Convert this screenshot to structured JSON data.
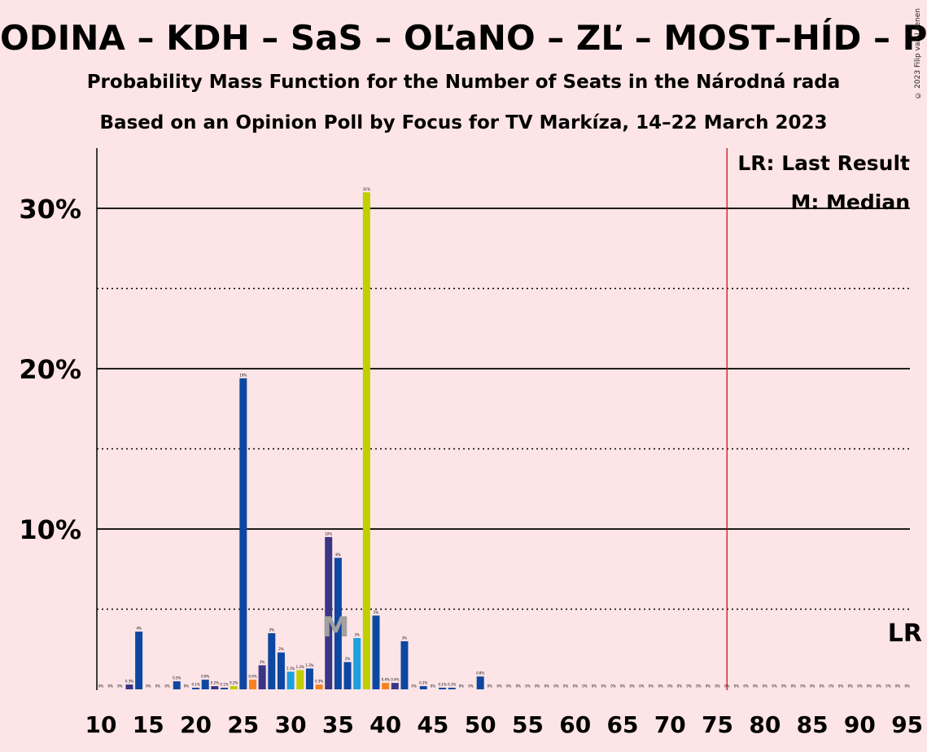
{
  "header": {
    "title": "ODINA – KDH – SaS – OĽaNO – ZĽ – MOST–HÍD – PS–",
    "subtitle1": "Probability Mass Function for the Number of Seats in the Národná rada",
    "subtitle2": "Based on an Opinion Poll by Focus for TV Markíza, 14–22 March 2023",
    "copyright": "© 2023 Filip van Laenen"
  },
  "legend": {
    "last_result": "LR: Last Result",
    "median": "M: Median",
    "lr_marker": "LR",
    "median_marker": "M"
  },
  "colors": {
    "background": "#fde4e6",
    "navy": "#0d47a1",
    "purple": "#3b3585",
    "teal_blue": "#1ba0e0",
    "yellow_green": "#bfcf00",
    "orange": "#f58220",
    "last_result_line": "#cc0000"
  },
  "chart_data": {
    "type": "bar",
    "title": "Probability Mass Function for the Number of Seats in the Národná rada",
    "xlabel": "",
    "ylabel": "",
    "xlim": [
      10,
      95
    ],
    "ylim": [
      0,
      0.33
    ],
    "y_ticks": [
      {
        "value": 0.1,
        "label": "10%"
      },
      {
        "value": 0.2,
        "label": "20%"
      },
      {
        "value": 0.3,
        "label": "30%"
      }
    ],
    "x_ticks": [
      10,
      15,
      20,
      25,
      30,
      35,
      40,
      45,
      50,
      55,
      60,
      65,
      70,
      75,
      80,
      85,
      90,
      95
    ],
    "grid": "solid at 10%, 20%, 30%; dotted at 5%, 15%, 25%",
    "last_result_seats": 76,
    "median_seats": 35,
    "bars": [
      {
        "x": 10,
        "value": 0.0,
        "label": "0%",
        "color": "navy"
      },
      {
        "x": 11,
        "value": 0.0,
        "label": "0%",
        "color": "navy"
      },
      {
        "x": 12,
        "value": 0.0,
        "label": "0%",
        "color": "navy"
      },
      {
        "x": 13,
        "value": 0.003,
        "label": "0.3%",
        "color": "purple"
      },
      {
        "x": 14,
        "value": 0.036,
        "label": "4%",
        "color": "navy"
      },
      {
        "x": 15,
        "value": 0.0,
        "label": "0%",
        "color": "navy"
      },
      {
        "x": 16,
        "value": 0.0,
        "label": "0%",
        "color": "navy"
      },
      {
        "x": 17,
        "value": 0.0,
        "label": "0%",
        "color": "navy"
      },
      {
        "x": 18,
        "value": 0.005,
        "label": "0.5%",
        "color": "navy"
      },
      {
        "x": 19,
        "value": 0.0,
        "label": "0%",
        "color": "navy"
      },
      {
        "x": 20,
        "value": 0.001,
        "label": "0.1%",
        "color": "navy"
      },
      {
        "x": 21,
        "value": 0.006,
        "label": "0.6%",
        "color": "navy"
      },
      {
        "x": 22,
        "value": 0.002,
        "label": "0.2%",
        "color": "purple"
      },
      {
        "x": 23,
        "value": 0.001,
        "label": "0.1%",
        "color": "navy"
      },
      {
        "x": 24,
        "value": 0.002,
        "label": "0.2%",
        "color": "yellow_green"
      },
      {
        "x": 25,
        "value": 0.194,
        "label": "19%",
        "color": "navy"
      },
      {
        "x": 26,
        "value": 0.006,
        "label": "0.6%",
        "color": "orange"
      },
      {
        "x": 27,
        "value": 0.015,
        "label": "2%",
        "color": "purple"
      },
      {
        "x": 28,
        "value": 0.035,
        "label": "3%",
        "color": "navy"
      },
      {
        "x": 29,
        "value": 0.023,
        "label": "2%",
        "color": "navy"
      },
      {
        "x": 30,
        "value": 0.011,
        "label": "1.1%",
        "color": "teal_blue"
      },
      {
        "x": 31,
        "value": 0.012,
        "label": "1.2%",
        "color": "yellow_green"
      },
      {
        "x": 32,
        "value": 0.013,
        "label": "1.3%",
        "color": "navy"
      },
      {
        "x": 33,
        "value": 0.003,
        "label": "0.3%",
        "color": "orange"
      },
      {
        "x": 34,
        "value": 0.095,
        "label": "10%",
        "color": "purple"
      },
      {
        "x": 35,
        "value": 0.082,
        "label": "8%",
        "color": "navy"
      },
      {
        "x": 36,
        "value": 0.017,
        "label": "2%",
        "color": "navy"
      },
      {
        "x": 37,
        "value": 0.032,
        "label": "3%",
        "color": "teal_blue"
      },
      {
        "x": 38,
        "value": 0.31,
        "label": "31%",
        "color": "yellow_green"
      },
      {
        "x": 39,
        "value": 0.046,
        "label": "5%",
        "color": "navy"
      },
      {
        "x": 40,
        "value": 0.004,
        "label": "0.4%",
        "color": "orange"
      },
      {
        "x": 41,
        "value": 0.004,
        "label": "0.4%",
        "color": "purple"
      },
      {
        "x": 42,
        "value": 0.03,
        "label": "3%",
        "color": "navy"
      },
      {
        "x": 43,
        "value": 0.0,
        "label": "0%",
        "color": "navy"
      },
      {
        "x": 44,
        "value": 0.002,
        "label": "0.2%",
        "color": "navy"
      },
      {
        "x": 45,
        "value": 0.0,
        "label": "0%",
        "color": "navy"
      },
      {
        "x": 46,
        "value": 0.001,
        "label": "0.1%",
        "color": "navy"
      },
      {
        "x": 47,
        "value": 0.001,
        "label": "0.1%",
        "color": "navy"
      },
      {
        "x": 48,
        "value": 0.0,
        "label": "0%",
        "color": "navy"
      },
      {
        "x": 49,
        "value": 0.0,
        "label": "0%",
        "color": "navy"
      },
      {
        "x": 50,
        "value": 0.008,
        "label": "0.8%",
        "color": "navy"
      },
      {
        "x": 51,
        "value": 0.0,
        "label": "0%",
        "color": "navy"
      },
      {
        "x": 52,
        "value": 0.0,
        "label": "0%",
        "color": "navy"
      },
      {
        "x": 53,
        "value": 0.0,
        "label": "0%",
        "color": "navy"
      },
      {
        "x": 54,
        "value": 0.0,
        "label": "0%",
        "color": "navy"
      },
      {
        "x": 55,
        "value": 0.0,
        "label": "0%",
        "color": "navy"
      },
      {
        "x": 56,
        "value": 0.0,
        "label": "0%",
        "color": "navy"
      },
      {
        "x": 57,
        "value": 0.0,
        "label": "0%",
        "color": "navy"
      },
      {
        "x": 58,
        "value": 0.0,
        "label": "0%",
        "color": "navy"
      },
      {
        "x": 59,
        "value": 0.0,
        "label": "0%",
        "color": "navy"
      },
      {
        "x": 60,
        "value": 0.0,
        "label": "0%",
        "color": "navy"
      },
      {
        "x": 61,
        "value": 0.0,
        "label": "0%",
        "color": "navy"
      },
      {
        "x": 62,
        "value": 0.0,
        "label": "0%",
        "color": "navy"
      },
      {
        "x": 63,
        "value": 0.0,
        "label": "0%",
        "color": "navy"
      },
      {
        "x": 64,
        "value": 0.0,
        "label": "0%",
        "color": "navy"
      },
      {
        "x": 65,
        "value": 0.0,
        "label": "0%",
        "color": "navy"
      },
      {
        "x": 66,
        "value": 0.0,
        "label": "0%",
        "color": "navy"
      },
      {
        "x": 67,
        "value": 0.0,
        "label": "0%",
        "color": "navy"
      },
      {
        "x": 68,
        "value": 0.0,
        "label": "0%",
        "color": "navy"
      },
      {
        "x": 69,
        "value": 0.0,
        "label": "0%",
        "color": "navy"
      },
      {
        "x": 70,
        "value": 0.0,
        "label": "0%",
        "color": "navy"
      },
      {
        "x": 71,
        "value": 0.0,
        "label": "0%",
        "color": "navy"
      },
      {
        "x": 72,
        "value": 0.0,
        "label": "0%",
        "color": "navy"
      },
      {
        "x": 73,
        "value": 0.0,
        "label": "0%",
        "color": "navy"
      },
      {
        "x": 74,
        "value": 0.0,
        "label": "0%",
        "color": "navy"
      },
      {
        "x": 75,
        "value": 0.0,
        "label": "0%",
        "color": "navy"
      },
      {
        "x": 76,
        "value": 0.0,
        "label": "0%",
        "color": "navy"
      },
      {
        "x": 77,
        "value": 0.0,
        "label": "0%",
        "color": "navy"
      },
      {
        "x": 78,
        "value": 0.0,
        "label": "0%",
        "color": "navy"
      },
      {
        "x": 79,
        "value": 0.0,
        "label": "0%",
        "color": "navy"
      },
      {
        "x": 80,
        "value": 0.0,
        "label": "0%",
        "color": "navy"
      },
      {
        "x": 81,
        "value": 0.0,
        "label": "0%",
        "color": "navy"
      },
      {
        "x": 82,
        "value": 0.0,
        "label": "0%",
        "color": "navy"
      },
      {
        "x": 83,
        "value": 0.0,
        "label": "0%",
        "color": "navy"
      },
      {
        "x": 84,
        "value": 0.0,
        "label": "0%",
        "color": "navy"
      },
      {
        "x": 85,
        "value": 0.0,
        "label": "0%",
        "color": "navy"
      },
      {
        "x": 86,
        "value": 0.0,
        "label": "0%",
        "color": "navy"
      },
      {
        "x": 87,
        "value": 0.0,
        "label": "0%",
        "color": "navy"
      },
      {
        "x": 88,
        "value": 0.0,
        "label": "0%",
        "color": "navy"
      },
      {
        "x": 89,
        "value": 0.0,
        "label": "0%",
        "color": "navy"
      },
      {
        "x": 90,
        "value": 0.0,
        "label": "0%",
        "color": "navy"
      },
      {
        "x": 91,
        "value": 0.0,
        "label": "0%",
        "color": "navy"
      },
      {
        "x": 92,
        "value": 0.0,
        "label": "0%",
        "color": "navy"
      },
      {
        "x": 93,
        "value": 0.0,
        "label": "0%",
        "color": "navy"
      },
      {
        "x": 94,
        "value": 0.0,
        "label": "0%",
        "color": "navy"
      },
      {
        "x": 95,
        "value": 0.0,
        "label": "0%",
        "color": "navy"
      }
    ]
  }
}
